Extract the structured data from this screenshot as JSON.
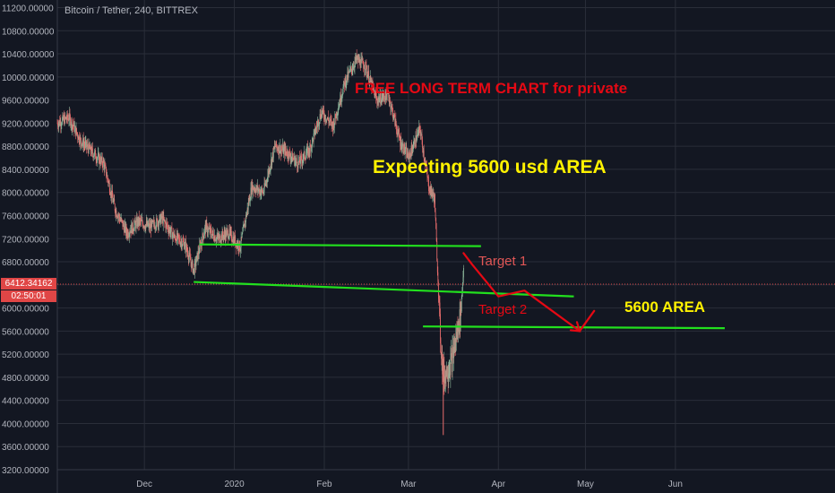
{
  "header": {
    "symbol_title": "Bitcoin / Tether, 240, BITTREX"
  },
  "colors": {
    "background": "#131722",
    "grid": "#2a2e39",
    "axis_text": "#b2b5be",
    "candle_up": "#8bb59a",
    "candle_down": "#e86c6c",
    "drawn_lines": "#22e01e",
    "drawn_arrow": "#e50914",
    "price_tag": "#e04646"
  },
  "annotations": {
    "free_chart": "FREE LONG TERM CHART for private",
    "expecting": "Expecting 5600 usd AREA",
    "target1": "Target 1",
    "target2": "Target 2",
    "area_5600": "5600 AREA"
  },
  "price_tag": {
    "last_price": "6412.34162",
    "countdown": "02:50:01"
  },
  "chart_data": {
    "type": "line",
    "title": "Bitcoin / Tether, 240, BITTREX",
    "xlabel": "",
    "ylabel": "",
    "ylim": [
      3100,
      11300
    ],
    "grid": true,
    "y_ticks": [
      "11200.00000",
      "10800.00000",
      "10400.00000",
      "10000.00000",
      "9600.00000",
      "9200.00000",
      "8800.00000",
      "8400.00000",
      "8000.00000",
      "7600.00000",
      "7200.00000",
      "6800.00000",
      "6400.00000",
      "6000.00000",
      "5600.00000",
      "5200.00000",
      "4800.00000",
      "4400.00000",
      "4000.00000",
      "3600.00000",
      "3200.00000"
    ],
    "x_ticks": [
      "Dec",
      "2020",
      "Feb",
      "Mar",
      "Apr",
      "May",
      "Jun"
    ],
    "x_tick_dates": [
      "2019-12-01",
      "2020-01-01",
      "2020-02-01",
      "2020-03-01",
      "2020-04-01",
      "2020-05-01",
      "2020-06-01"
    ],
    "x_range": [
      "2019-11-01",
      "2020-07-26"
    ],
    "series": [
      {
        "x": [
          "2019-11-01",
          "2019-11-05",
          "2019-11-09",
          "2019-11-13",
          "2019-11-17",
          "2019-11-21",
          "2019-11-25",
          "2019-11-29",
          "2019-12-03",
          "2019-12-07",
          "2019-12-11",
          "2019-12-15",
          "2019-12-18",
          "2019-12-22",
          "2019-12-26",
          "2019-12-30",
          "2020-01-03",
          "2020-01-07",
          "2020-01-11",
          "2020-01-15",
          "2020-01-19",
          "2020-01-23",
          "2020-01-27",
          "2020-01-31",
          "2020-02-04",
          "2020-02-08",
          "2020-02-12",
          "2020-02-15",
          "2020-02-19",
          "2020-02-23",
          "2020-02-27",
          "2020-03-01",
          "2020-03-05",
          "2020-03-08",
          "2020-03-10",
          "2020-03-12",
          "2020-03-13",
          "2020-03-16",
          "2020-03-19",
          "2020-03-20"
        ],
        "values": [
          9200,
          9300,
          8900,
          8700,
          8500,
          7700,
          7300,
          7500,
          7400,
          7550,
          7250,
          7100,
          6650,
          7400,
          7200,
          7300,
          7050,
          8100,
          8000,
          8800,
          8700,
          8500,
          8750,
          9400,
          9150,
          9900,
          10300,
          10200,
          9600,
          9700,
          8900,
          8600,
          9100,
          8100,
          7900,
          5500,
          4800,
          5100,
          5900,
          6700
        ]
      }
    ],
    "drawn_lines": [
      {
        "name": "upper-support",
        "x": [
          "2019-12-20",
          "2020-03-26"
        ],
        "y": [
          7100,
          7070
        ]
      },
      {
        "name": "lower-support",
        "x": [
          "2019-12-18",
          "2020-04-27"
        ],
        "y": [
          6450,
          6200
        ]
      },
      {
        "name": "area-5600",
        "x": [
          "2020-03-06",
          "2020-06-18"
        ],
        "y": [
          5680,
          5650
        ]
      }
    ],
    "projection_arrow": {
      "x": [
        "2020-03-20",
        "2020-03-23",
        "2020-04-01",
        "2020-04-10",
        "2020-04-29",
        "2020-05-04"
      ],
      "y": [
        6950,
        6750,
        6200,
        6300,
        5600,
        5950
      ]
    }
  }
}
